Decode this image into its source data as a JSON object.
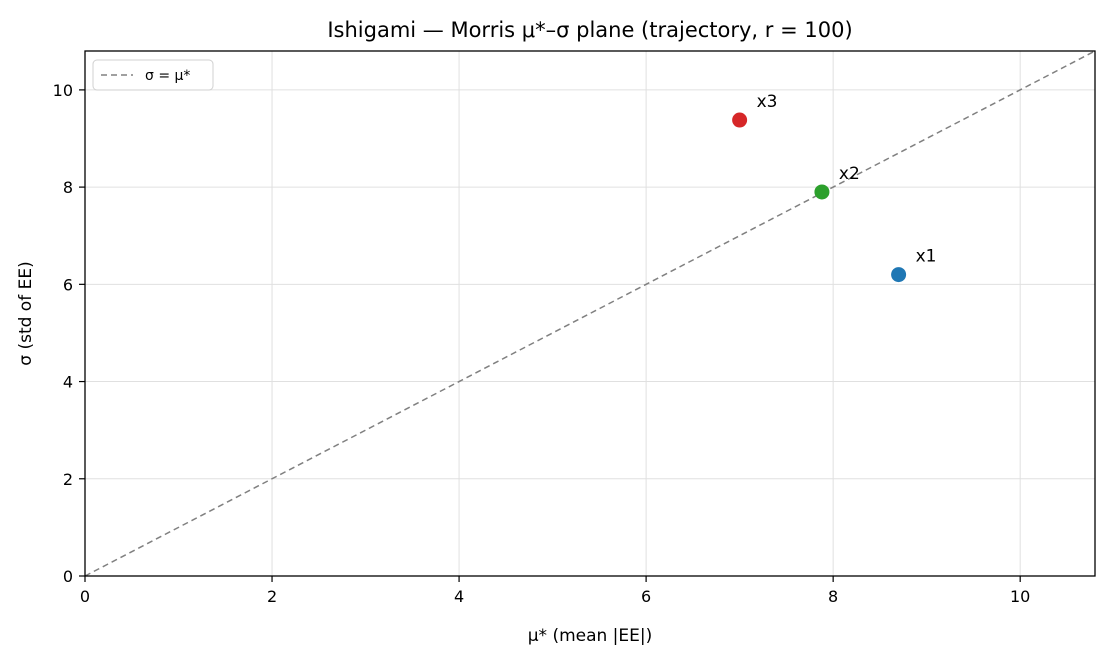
{
  "chart_data": {
    "type": "scatter",
    "title": "Ishigami — Morris μ*–σ plane (trajectory, r = 100)",
    "xlabel": "μ* (mean |EE|)",
    "ylabel": "σ (std of EE)",
    "xlim": [
      0,
      10.8
    ],
    "ylim": [
      0,
      10.8
    ],
    "xticks": [
      0,
      2,
      4,
      6,
      8,
      10
    ],
    "yticks": [
      0,
      2,
      4,
      6,
      8,
      10
    ],
    "grid": true,
    "legend": {
      "placement": "top-left",
      "entries": [
        {
          "label": "σ = μ*",
          "style": "dashed",
          "color": "#808080"
        }
      ]
    },
    "reference_line": {
      "label": "σ = μ*",
      "slope": 1,
      "intercept": 0,
      "color": "#808080",
      "style": "dashed"
    },
    "points": [
      {
        "label": "x1",
        "x": 8.7,
        "y": 6.2,
        "color": "#1f77b4"
      },
      {
        "label": "x2",
        "x": 7.88,
        "y": 7.9,
        "color": "#2ca02c"
      },
      {
        "label": "x3",
        "x": 7.0,
        "y": 9.38,
        "color": "#d62728"
      }
    ]
  }
}
